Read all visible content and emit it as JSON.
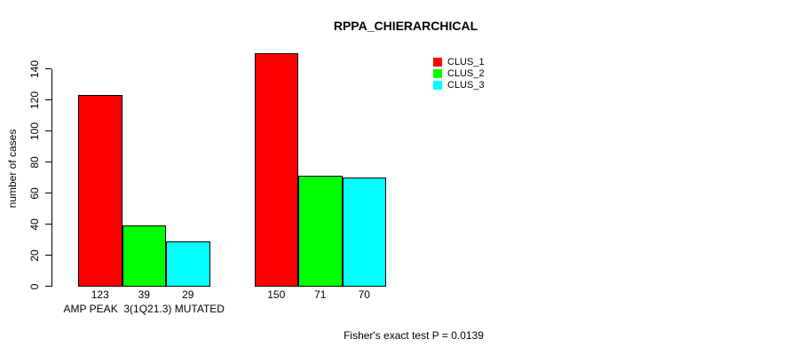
{
  "chart_data": {
    "type": "bar",
    "title": "RPPA_CHIERARCHICAL",
    "ylabel": "number of cases",
    "annotation": "Fisher's exact test P = 0.0139",
    "yticks": [
      0,
      20,
      40,
      60,
      80,
      100,
      120,
      140
    ],
    "ylim": [
      0,
      150
    ],
    "grid": false,
    "legend_position": "top-right",
    "bar_value_labels": true,
    "categories": [
      "AMP PEAK  3(1Q21.3) MUTATED",
      ""
    ],
    "series": [
      {
        "name": "CLUS_1",
        "color": "#ff0000",
        "values": [
          123,
          150
        ]
      },
      {
        "name": "CLUS_2",
        "color": "#00ff00",
        "values": [
          39,
          71
        ]
      },
      {
        "name": "CLUS_3",
        "color": "#00ffff",
        "values": [
          29,
          70
        ]
      }
    ]
  }
}
